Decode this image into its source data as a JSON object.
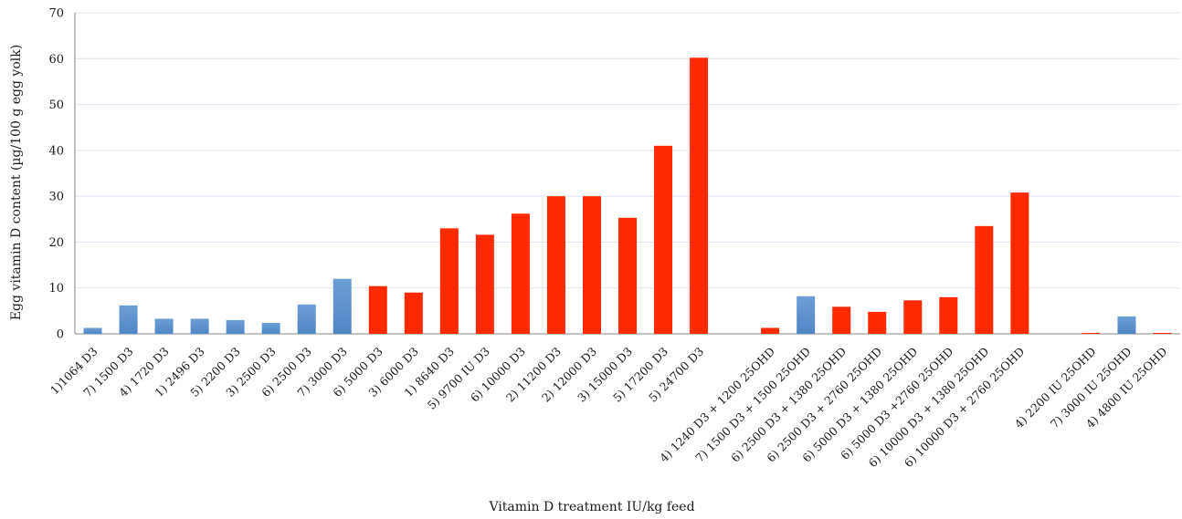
{
  "chart_data": {
    "type": "bar",
    "title": "",
    "xlabel": "Vitamin D treatment IU/kg feed",
    "ylabel": "Egg vitamin D content (µg/100 g egg yolk)",
    "ylim": [
      0,
      70
    ],
    "yticks": [
      0,
      10,
      20,
      30,
      40,
      50,
      60,
      70
    ],
    "grid": true,
    "legend": "none",
    "colors": {
      "blue": "#4f86c6",
      "red": "#ff2a00"
    },
    "categories": [
      "1)1064 D3",
      "7) 1500 D3",
      "4) 1720 D3",
      "1) 2496 D3",
      "5) 2200 D3",
      "3) 2500 D3",
      "6) 2500 D3",
      "7) 3000 D3",
      "6) 5000 D3",
      "3) 6000 D3",
      "1) 8640 D3",
      "5) 9700 IU D3",
      "6) 10000 D3",
      "2) 11200 D3",
      "2) 12000 D3",
      "3) 15000 D3",
      "5) 17200 D3",
      "5) 24700 D3",
      "",
      "4) 1240 D3 + 1200 25OHD",
      "7) 1500 D3 + 1500 25OHD",
      "6) 2500 D3 + 1380 25OHD",
      "6) 2500 D3 + 2760 25OHD",
      "6) 5000 D3 + 1380 25OHD",
      "6) 5000 D3 +2760 25OHD",
      "6) 10000 D3 + 1380 25OHD",
      "6) 10000 D3 + 2760 25OHD",
      "",
      "4) 2200 IU 25OHD",
      "7) 3000 IU 25OHD",
      "4) 4800 IU 25OHD"
    ],
    "values": [
      1.3,
      6.2,
      3.3,
      3.3,
      3.0,
      2.4,
      6.4,
      12.0,
      10.4,
      9.0,
      23.0,
      21.6,
      26.2,
      30.0,
      30.0,
      25.3,
      41.0,
      60.2,
      null,
      1.3,
      8.2,
      5.9,
      4.8,
      7.3,
      8.0,
      23.5,
      30.8,
      null,
      0.2,
      3.8,
      0.2
    ],
    "bar_colors": [
      "blue",
      "blue",
      "blue",
      "blue",
      "blue",
      "blue",
      "blue",
      "blue",
      "red",
      "red",
      "red",
      "red",
      "red",
      "red",
      "red",
      "red",
      "red",
      "red",
      null,
      "red",
      "blue",
      "red",
      "red",
      "red",
      "red",
      "red",
      "red",
      null,
      "red",
      "blue",
      "red"
    ]
  }
}
